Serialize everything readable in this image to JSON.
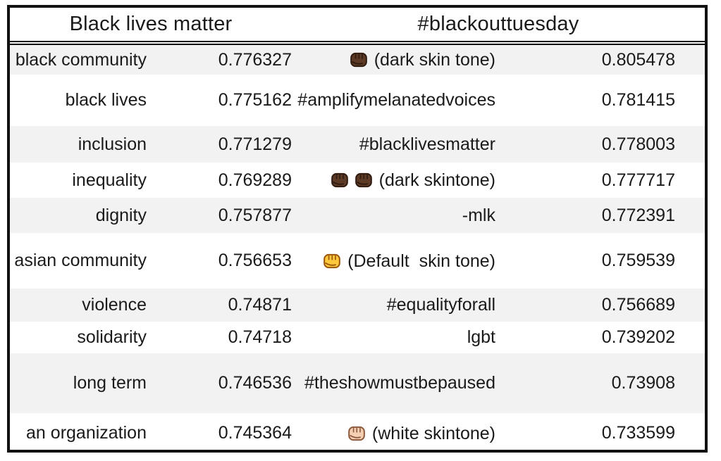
{
  "table": {
    "headers": [
      {
        "label": "Black lives matter"
      },
      {
        "label": "#blackouttuesday"
      }
    ],
    "rows": [
      {
        "left": {
          "term": "black community",
          "value": "0.776327"
        },
        "right": {
          "emoji": "fist-dark",
          "emoji_count": 1,
          "term": "(dark skin tone)",
          "value": "0.805478"
        }
      },
      {
        "left": {
          "term": "black lives",
          "value": "0.775162"
        },
        "right": {
          "term": "#amplifymelanatedvoices",
          "value": "0.781415"
        }
      },
      {
        "left": {
          "term": "inclusion",
          "value": "0.771279"
        },
        "right": {
          "term": "#blacklivesmatter",
          "value": "0.778003"
        }
      },
      {
        "left": {
          "term": "inequality",
          "value": "0.769289"
        },
        "right": {
          "emoji": "fist-dark",
          "emoji_count": 2,
          "term": "(dark skintone)",
          "value": "0.777717"
        }
      },
      {
        "left": {
          "term": "dignity",
          "value": "0.757877"
        },
        "right": {
          "term": "-mlk",
          "value": "0.772391"
        }
      },
      {
        "left": {
          "term": "asian community",
          "value": "0.756653"
        },
        "right": {
          "emoji": "fist-default",
          "emoji_count": 1,
          "term": "(Default  skin tone)",
          "value": "0.759539"
        }
      },
      {
        "left": {
          "term": "violence",
          "value": "0.74871"
        },
        "right": {
          "term": "#equalityforall",
          "value": "0.756689"
        }
      },
      {
        "left": {
          "term": "solidarity",
          "value": "0.74718"
        },
        "right": {
          "term": "lgbt",
          "value": "0.739202"
        }
      },
      {
        "left": {
          "term": "long term",
          "value": "0.746536"
        },
        "right": {
          "term": "#theshowmustbepaused",
          "value": "0.73908"
        }
      },
      {
        "left": {
          "term": "an organization",
          "value": "0.745364"
        },
        "right": {
          "emoji": "fist-light",
          "emoji_count": 1,
          "term": "(white skintone)",
          "value": "0.733599"
        }
      }
    ]
  },
  "icons": {
    "fist-dark": {
      "name": "raised-fist-dark-skin-tone",
      "fill": "#5C3A26",
      "stroke": "#2F1B10"
    },
    "fist-default": {
      "name": "raised-fist-default",
      "fill": "#FFC83D",
      "stroke": "#99570D"
    },
    "fist-light": {
      "name": "raised-fist-light-skin-tone",
      "fill": "#F5CFB2",
      "stroke": "#8D5B3F"
    }
  },
  "colors": {
    "stripe": "#f2f2f2",
    "border": "#111111",
    "text": "#1a1a1a"
  }
}
